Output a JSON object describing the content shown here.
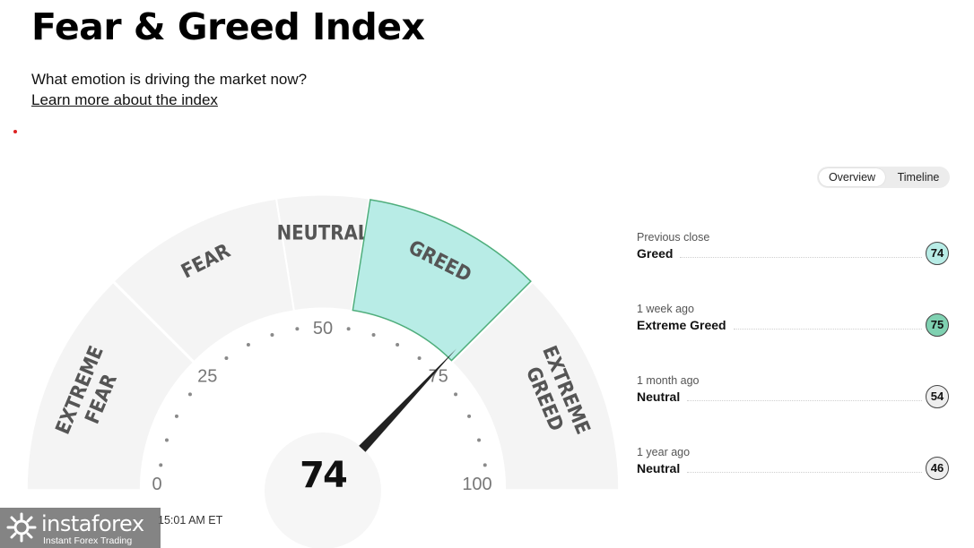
{
  "header": {
    "title": "Fear & Greed Index",
    "subtitle": "What emotion is driving the market now?",
    "learn_more": "Learn more about the index"
  },
  "view_toggle": {
    "options": [
      "Overview",
      "Timeline"
    ],
    "selected": "Overview"
  },
  "gauge": {
    "value": 74,
    "value_text": "74",
    "active_segment": "GREED",
    "segments": [
      {
        "name": "extreme-fear",
        "lines": [
          "EXTREME",
          "FEAR"
        ],
        "range": [
          0,
          25
        ]
      },
      {
        "name": "fear",
        "lines": [
          "FEAR"
        ],
        "range": [
          25,
          45
        ]
      },
      {
        "name": "neutral",
        "lines": [
          "NEUTRAL"
        ],
        "range": [
          45,
          55
        ]
      },
      {
        "name": "greed",
        "lines": [
          "GREED"
        ],
        "range": [
          55,
          75
        ]
      },
      {
        "name": "extreme-greed",
        "lines": [
          "EXTREME",
          "GREED"
        ],
        "range": [
          75,
          100
        ]
      }
    ],
    "tick_labels": [
      "0",
      "25",
      "50",
      "75",
      "100"
    ],
    "colors": {
      "segment": "#f4f4f4",
      "active_fill": "#b8ece6",
      "active_stroke": "#4fae7c",
      "needle": "#222222"
    }
  },
  "history": [
    {
      "when": "Previous close",
      "label": "Greed",
      "value": "74",
      "badge_color": "#b8ece6"
    },
    {
      "when": "1 week ago",
      "label": "Extreme Greed",
      "value": "75",
      "badge_color": "#7fd1b1"
    },
    {
      "when": "1 month ago",
      "label": "Neutral",
      "value": "54",
      "badge_color": "#eeeeee"
    },
    {
      "when": "1 year ago",
      "label": "Neutral",
      "value": "46",
      "badge_color": "#eeeeee"
    }
  ],
  "timestamp": "15:01 AM ET",
  "watermark": {
    "name": "instaforex",
    "tagline": "Instant Forex Trading"
  }
}
